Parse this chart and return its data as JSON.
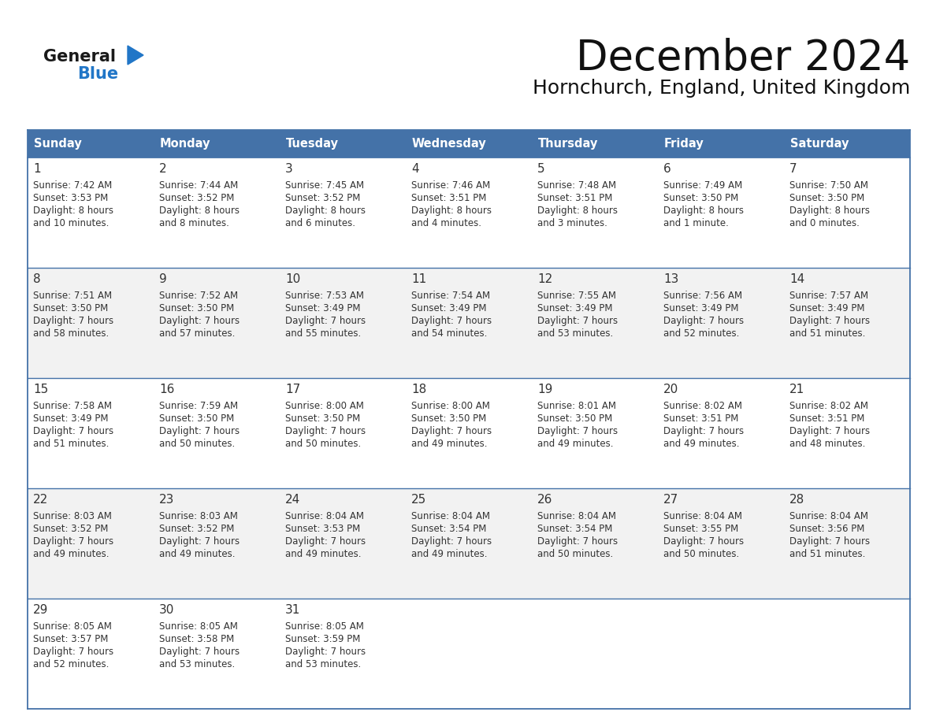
{
  "title": "December 2024",
  "subtitle": "Hornchurch, England, United Kingdom",
  "header_color": "#4472a8",
  "header_text_color": "#ffffff",
  "weekdays": [
    "Sunday",
    "Monday",
    "Tuesday",
    "Wednesday",
    "Thursday",
    "Friday",
    "Saturday"
  ],
  "row_bg_light": "#f2f2f2",
  "row_bg_white": "#ffffff",
  "cell_border_color": "#4472a8",
  "text_color": "#333333",
  "logo_general_color": "#1a1a1a",
  "logo_blue_color": "#2176c7",
  "logo_triangle_color": "#2176c7",
  "days": [
    {
      "day": 1,
      "col": 0,
      "row": 0,
      "sunrise": "7:42 AM",
      "sunset": "3:53 PM",
      "daylight_h": "8 hours",
      "daylight_m": "10 minutes."
    },
    {
      "day": 2,
      "col": 1,
      "row": 0,
      "sunrise": "7:44 AM",
      "sunset": "3:52 PM",
      "daylight_h": "8 hours",
      "daylight_m": "8 minutes."
    },
    {
      "day": 3,
      "col": 2,
      "row": 0,
      "sunrise": "7:45 AM",
      "sunset": "3:52 PM",
      "daylight_h": "8 hours",
      "daylight_m": "6 minutes."
    },
    {
      "day": 4,
      "col": 3,
      "row": 0,
      "sunrise": "7:46 AM",
      "sunset": "3:51 PM",
      "daylight_h": "8 hours",
      "daylight_m": "4 minutes."
    },
    {
      "day": 5,
      "col": 4,
      "row": 0,
      "sunrise": "7:48 AM",
      "sunset": "3:51 PM",
      "daylight_h": "8 hours",
      "daylight_m": "3 minutes."
    },
    {
      "day": 6,
      "col": 5,
      "row": 0,
      "sunrise": "7:49 AM",
      "sunset": "3:50 PM",
      "daylight_h": "8 hours",
      "daylight_m": "1 minute."
    },
    {
      "day": 7,
      "col": 6,
      "row": 0,
      "sunrise": "7:50 AM",
      "sunset": "3:50 PM",
      "daylight_h": "8 hours",
      "daylight_m": "0 minutes."
    },
    {
      "day": 8,
      "col": 0,
      "row": 1,
      "sunrise": "7:51 AM",
      "sunset": "3:50 PM",
      "daylight_h": "7 hours",
      "daylight_m": "58 minutes."
    },
    {
      "day": 9,
      "col": 1,
      "row": 1,
      "sunrise": "7:52 AM",
      "sunset": "3:50 PM",
      "daylight_h": "7 hours",
      "daylight_m": "57 minutes."
    },
    {
      "day": 10,
      "col": 2,
      "row": 1,
      "sunrise": "7:53 AM",
      "sunset": "3:49 PM",
      "daylight_h": "7 hours",
      "daylight_m": "55 minutes."
    },
    {
      "day": 11,
      "col": 3,
      "row": 1,
      "sunrise": "7:54 AM",
      "sunset": "3:49 PM",
      "daylight_h": "7 hours",
      "daylight_m": "54 minutes."
    },
    {
      "day": 12,
      "col": 4,
      "row": 1,
      "sunrise": "7:55 AM",
      "sunset": "3:49 PM",
      "daylight_h": "7 hours",
      "daylight_m": "53 minutes."
    },
    {
      "day": 13,
      "col": 5,
      "row": 1,
      "sunrise": "7:56 AM",
      "sunset": "3:49 PM",
      "daylight_h": "7 hours",
      "daylight_m": "52 minutes."
    },
    {
      "day": 14,
      "col": 6,
      "row": 1,
      "sunrise": "7:57 AM",
      "sunset": "3:49 PM",
      "daylight_h": "7 hours",
      "daylight_m": "51 minutes."
    },
    {
      "day": 15,
      "col": 0,
      "row": 2,
      "sunrise": "7:58 AM",
      "sunset": "3:49 PM",
      "daylight_h": "7 hours",
      "daylight_m": "51 minutes."
    },
    {
      "day": 16,
      "col": 1,
      "row": 2,
      "sunrise": "7:59 AM",
      "sunset": "3:50 PM",
      "daylight_h": "7 hours",
      "daylight_m": "50 minutes."
    },
    {
      "day": 17,
      "col": 2,
      "row": 2,
      "sunrise": "8:00 AM",
      "sunset": "3:50 PM",
      "daylight_h": "7 hours",
      "daylight_m": "50 minutes."
    },
    {
      "day": 18,
      "col": 3,
      "row": 2,
      "sunrise": "8:00 AM",
      "sunset": "3:50 PM",
      "daylight_h": "7 hours",
      "daylight_m": "49 minutes."
    },
    {
      "day": 19,
      "col": 4,
      "row": 2,
      "sunrise": "8:01 AM",
      "sunset": "3:50 PM",
      "daylight_h": "7 hours",
      "daylight_m": "49 minutes."
    },
    {
      "day": 20,
      "col": 5,
      "row": 2,
      "sunrise": "8:02 AM",
      "sunset": "3:51 PM",
      "daylight_h": "7 hours",
      "daylight_m": "49 minutes."
    },
    {
      "day": 21,
      "col": 6,
      "row": 2,
      "sunrise": "8:02 AM",
      "sunset": "3:51 PM",
      "daylight_h": "7 hours",
      "daylight_m": "48 minutes."
    },
    {
      "day": 22,
      "col": 0,
      "row": 3,
      "sunrise": "8:03 AM",
      "sunset": "3:52 PM",
      "daylight_h": "7 hours",
      "daylight_m": "49 minutes."
    },
    {
      "day": 23,
      "col": 1,
      "row": 3,
      "sunrise": "8:03 AM",
      "sunset": "3:52 PM",
      "daylight_h": "7 hours",
      "daylight_m": "49 minutes."
    },
    {
      "day": 24,
      "col": 2,
      "row": 3,
      "sunrise": "8:04 AM",
      "sunset": "3:53 PM",
      "daylight_h": "7 hours",
      "daylight_m": "49 minutes."
    },
    {
      "day": 25,
      "col": 3,
      "row": 3,
      "sunrise": "8:04 AM",
      "sunset": "3:54 PM",
      "daylight_h": "7 hours",
      "daylight_m": "49 minutes."
    },
    {
      "day": 26,
      "col": 4,
      "row": 3,
      "sunrise": "8:04 AM",
      "sunset": "3:54 PM",
      "daylight_h": "7 hours",
      "daylight_m": "50 minutes."
    },
    {
      "day": 27,
      "col": 5,
      "row": 3,
      "sunrise": "8:04 AM",
      "sunset": "3:55 PM",
      "daylight_h": "7 hours",
      "daylight_m": "50 minutes."
    },
    {
      "day": 28,
      "col": 6,
      "row": 3,
      "sunrise": "8:04 AM",
      "sunset": "3:56 PM",
      "daylight_h": "7 hours",
      "daylight_m": "51 minutes."
    },
    {
      "day": 29,
      "col": 0,
      "row": 4,
      "sunrise": "8:05 AM",
      "sunset": "3:57 PM",
      "daylight_h": "7 hours",
      "daylight_m": "52 minutes."
    },
    {
      "day": 30,
      "col": 1,
      "row": 4,
      "sunrise": "8:05 AM",
      "sunset": "3:58 PM",
      "daylight_h": "7 hours",
      "daylight_m": "53 minutes."
    },
    {
      "day": 31,
      "col": 2,
      "row": 4,
      "sunrise": "8:05 AM",
      "sunset": "3:59 PM",
      "daylight_h": "7 hours",
      "daylight_m": "53 minutes."
    }
  ]
}
